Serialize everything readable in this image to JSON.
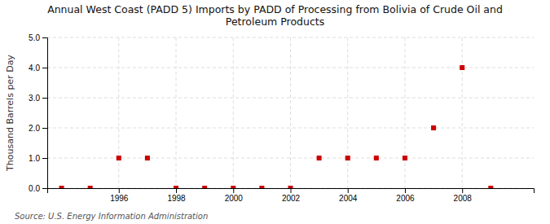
{
  "chart_data": {
    "type": "scatter",
    "title": "Annual West Coast (PADD 5) Imports by PADD of Processing from Bolivia of Crude Oil and\nPetroleum Products",
    "ylabel": "Thousand Barrels per Day",
    "annotations": [
      "Source: U.S. Energy Information Administration"
    ],
    "x": [
      1994,
      1995,
      1996,
      1997,
      1998,
      1999,
      2000,
      2001,
      2002,
      2003,
      2004,
      2005,
      2006,
      2007,
      2008,
      2009
    ],
    "values": [
      0.0,
      0.0,
      1.0,
      1.0,
      0.0,
      0.0,
      0.0,
      0.0,
      0.0,
      1.0,
      1.0,
      1.0,
      1.0,
      2.0,
      4.0,
      0.0
    ],
    "color": "#cc0000",
    "marker": "square",
    "xlim": [
      1993.5,
      2010.5
    ],
    "xticks": [
      1996,
      1998,
      2000,
      2002,
      2004,
      2006,
      2008
    ],
    "ylim": [
      0.0,
      5.0
    ],
    "yticks": [
      {
        "value": 0.0,
        "label": "0.0"
      },
      {
        "value": 1.0,
        "label": "1.0"
      },
      {
        "value": 2.0,
        "label": "2.0"
      },
      {
        "value": 3.0,
        "label": "3.0"
      },
      {
        "value": 4.0,
        "label": "4.0"
      },
      {
        "value": 5.0,
        "label": "5.0"
      }
    ],
    "grid": true
  }
}
